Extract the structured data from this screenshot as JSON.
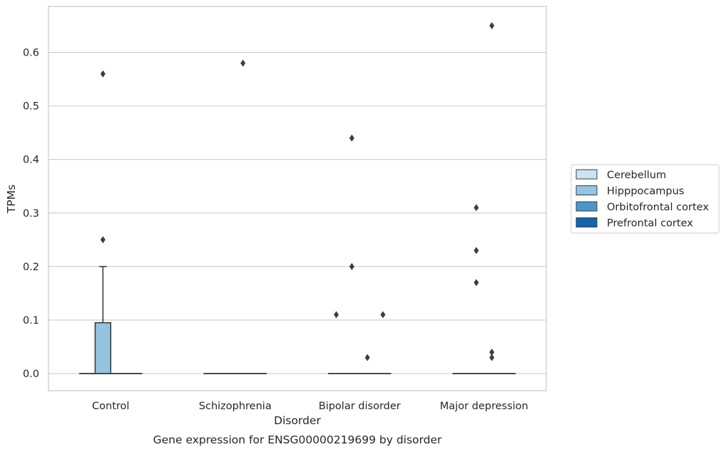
{
  "chart_data": {
    "type": "boxplot",
    "xlabel": "Disorder",
    "ylabel": "TPMs",
    "caption": "Gene expression for ENSG00000219699 by disorder",
    "categories": [
      "Control",
      "Schizophrenia",
      "Bipolar disorder",
      "Major depression"
    ],
    "ylim": [
      -0.032,
      0.686
    ],
    "yticks": [
      0.0,
      0.1,
      0.2,
      0.3,
      0.4,
      0.5,
      0.6
    ],
    "ytick_labels": [
      "0.0",
      "0.1",
      "0.2",
      "0.3",
      "0.4",
      "0.5",
      "0.6"
    ],
    "grid": "horizontal",
    "legend_position": "right",
    "series": [
      {
        "name": "Cerebellum",
        "color": "#d0e1f2",
        "boxes": [
          {
            "category": "Control",
            "q1": 0,
            "median": 0,
            "q3": 0,
            "whislo": 0,
            "whishi": 0,
            "fliers": []
          },
          {
            "category": "Schizophrenia",
            "q1": 0,
            "median": 0,
            "q3": 0,
            "whislo": 0,
            "whishi": 0,
            "fliers": []
          },
          {
            "category": "Bipolar disorder",
            "q1": 0,
            "median": 0,
            "q3": 0,
            "whislo": 0,
            "whishi": 0,
            "fliers": [
              0.11
            ]
          },
          {
            "category": "Major depression",
            "q1": 0,
            "median": 0,
            "q3": 0,
            "whislo": 0,
            "whishi": 0,
            "fliers": []
          }
        ]
      },
      {
        "name": "Hipppocampus",
        "color": "#94c4df",
        "boxes": [
          {
            "category": "Control",
            "q1": 0,
            "median": 0,
            "q3": 0.095,
            "whislo": 0,
            "whishi": 0.2,
            "fliers": [
              0.25,
              0.56
            ]
          },
          {
            "category": "Schizophrenia",
            "q1": 0,
            "median": 0,
            "q3": 0,
            "whislo": 0,
            "whishi": 0,
            "fliers": []
          },
          {
            "category": "Bipolar disorder",
            "q1": 0,
            "median": 0,
            "q3": 0,
            "whislo": 0,
            "whishi": 0,
            "fliers": [
              0.2,
              0.44
            ]
          },
          {
            "category": "Major depression",
            "q1": 0,
            "median": 0,
            "q3": 0,
            "whislo": 0,
            "whishi": 0,
            "fliers": [
              0.17,
              0.23,
              0.31
            ]
          }
        ]
      },
      {
        "name": "Orbitofrontal cortex",
        "color": "#4a98c9",
        "boxes": [
          {
            "category": "Control",
            "q1": 0,
            "median": 0,
            "q3": 0,
            "whislo": 0,
            "whishi": 0,
            "fliers": []
          },
          {
            "category": "Schizophrenia",
            "q1": 0,
            "median": 0,
            "q3": 0,
            "whislo": 0,
            "whishi": 0,
            "fliers": [
              0.58
            ]
          },
          {
            "category": "Bipolar disorder",
            "q1": 0,
            "median": 0,
            "q3": 0,
            "whislo": 0,
            "whishi": 0,
            "fliers": [
              0.03
            ]
          },
          {
            "category": "Major depression",
            "q1": 0,
            "median": 0,
            "q3": 0,
            "whislo": 0,
            "whishi": 0,
            "fliers": [
              0.03,
              0.04,
              0.65
            ]
          }
        ]
      },
      {
        "name": "Prefrontal cortex",
        "color": "#1764ab",
        "boxes": [
          {
            "category": "Control",
            "q1": 0,
            "median": 0,
            "q3": 0,
            "whislo": 0,
            "whishi": 0,
            "fliers": []
          },
          {
            "category": "Schizophrenia",
            "q1": 0,
            "median": 0,
            "q3": 0,
            "whislo": 0,
            "whishi": 0,
            "fliers": []
          },
          {
            "category": "Bipolar disorder",
            "q1": 0,
            "median": 0,
            "q3": 0,
            "whislo": 0,
            "whishi": 0,
            "fliers": [
              0.11
            ]
          },
          {
            "category": "Major depression",
            "q1": 0,
            "median": 0,
            "q3": 0,
            "whislo": 0,
            "whishi": 0,
            "fliers": []
          }
        ]
      }
    ]
  }
}
